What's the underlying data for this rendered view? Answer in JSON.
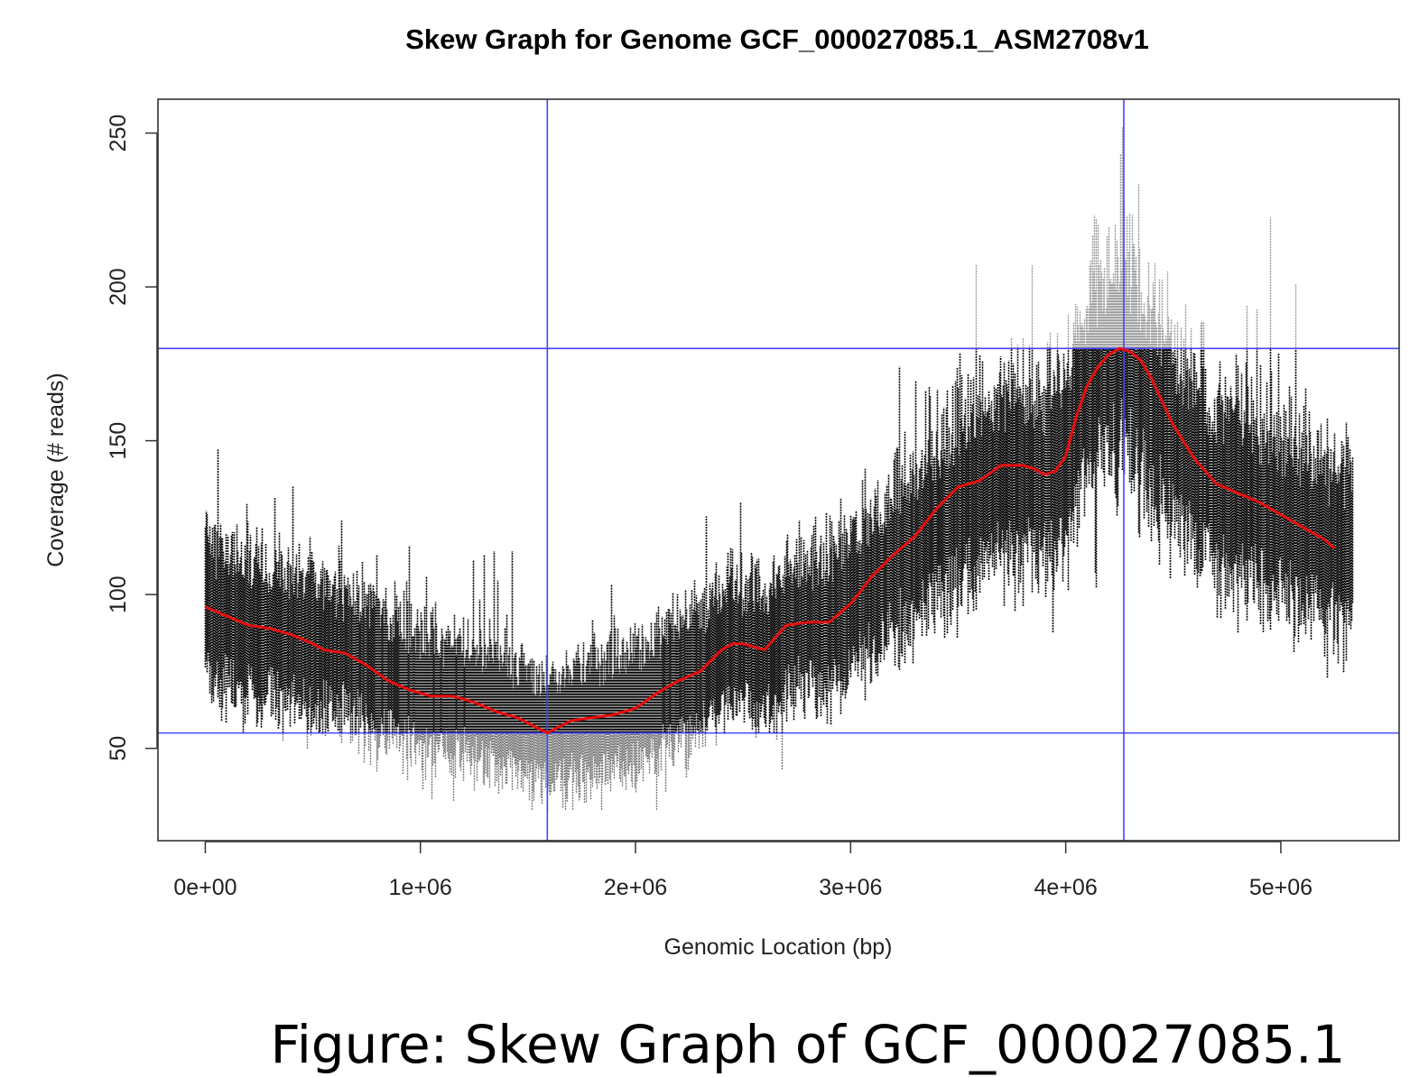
{
  "chart_data": {
    "type": "scatter",
    "title": "Skew Graph for Genome GCF_000027085.1_ASM2708v1",
    "xlabel": "Genomic Location (bp)",
    "ylabel": "Coverage (# reads)",
    "xlim": [
      -220000,
      5550000
    ],
    "ylim": [
      20,
      261
    ],
    "x_ticks": [
      0,
      1000000,
      2000000,
      3000000,
      4000000,
      5000000
    ],
    "x_tick_labels": [
      "0e+00",
      "1e+06",
      "2e+06",
      "3e+06",
      "4e+06",
      "5e+06"
    ],
    "y_ticks": [
      50,
      100,
      150,
      200,
      250
    ],
    "y_tick_labels": [
      "50",
      "100",
      "150",
      "200",
      "250"
    ],
    "grid": false,
    "legend": false,
    "reference_lines": {
      "vertical": [
        1590000,
        4270000
      ],
      "horizontal": [
        55,
        180
      ],
      "color": "#4444ff"
    },
    "series": [
      {
        "role": "coverage",
        "style": "dense vertical point strips",
        "colors": {
          "above_min": "#000000",
          "below_min": "#7a7a7a",
          "above_max": "#9a9a9a"
        },
        "x_range": [
          0,
          5330000
        ],
        "mean_profile": {
          "x": [
            0,
            200000,
            400000,
            600000,
            700000,
            900000,
            1050000,
            1200000,
            1350000,
            1450000,
            1590000,
            1750000,
            1900000,
            2000000,
            2150000,
            2300000,
            2450000,
            2600000,
            2750000,
            2900000,
            3000000,
            3200000,
            3350000,
            3500000,
            3650000,
            3800000,
            3900000,
            4000000,
            4100000,
            4200000,
            4270000,
            4350000,
            4500000,
            4700000,
            4900000,
            5100000,
            5250000,
            5330000
          ],
          "y": [
            96,
            90,
            87,
            82,
            80,
            72,
            67,
            66,
            62,
            60,
            55,
            59,
            61,
            63,
            70,
            75,
            84,
            82,
            91,
            91,
            97,
            112,
            119,
            130,
            137,
            142,
            139,
            146,
            168,
            178,
            180,
            170,
            150,
            135,
            130,
            122,
            116,
            113
          ]
        },
        "noise_band_range": [
          18,
          55
        ],
        "min_observed": 30,
        "max_observed": 252
      },
      {
        "role": "smoothed",
        "style": "line",
        "color": "#e01010",
        "x": [
          0,
          100000,
          200000,
          300000,
          400000,
          500000,
          550000,
          650000,
          750000,
          850000,
          950000,
          1050000,
          1150000,
          1250000,
          1350000,
          1450000,
          1590000,
          1700000,
          1800000,
          1900000,
          2000000,
          2100000,
          2200000,
          2300000,
          2400000,
          2450000,
          2500000,
          2600000,
          2700000,
          2800000,
          2900000,
          3000000,
          3100000,
          3200000,
          3300000,
          3400000,
          3500000,
          3600000,
          3700000,
          3800000,
          3850000,
          3900000,
          3950000,
          4000000,
          4050000,
          4100000,
          4150000,
          4200000,
          4250000,
          4300000,
          4350000,
          4400000,
          4500000,
          4600000,
          4700000,
          4800000,
          4900000,
          5000000,
          5100000,
          5200000,
          5250000
        ],
        "y": [
          96,
          93,
          90,
          89,
          87,
          84,
          82,
          81,
          77,
          72,
          69,
          67,
          67,
          65,
          62,
          60,
          55,
          59,
          60,
          61,
          63,
          68,
          72,
          75,
          82,
          84,
          84,
          82,
          90,
          91,
          91,
          97,
          106,
          113,
          119,
          128,
          135,
          137,
          142,
          142,
          141,
          139,
          140,
          145,
          158,
          168,
          174,
          178,
          180,
          179,
          176,
          170,
          155,
          144,
          136,
          133,
          130,
          126,
          122,
          118,
          115
        ]
      }
    ]
  },
  "caption": "Figure: Skew Graph of GCF_000027085.1"
}
